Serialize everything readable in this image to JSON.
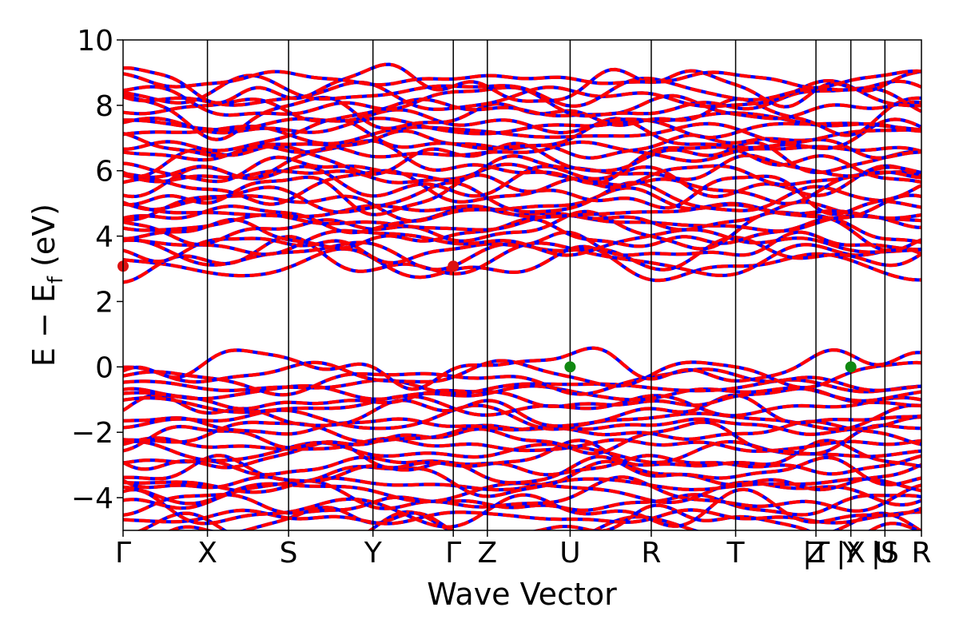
{
  "chart_data": {
    "type": "line",
    "xlabel": "Wave Vector",
    "ylabel_parts": [
      "E − E",
      "f",
      " (eV)"
    ],
    "ylim": [
      -5,
      10
    ],
    "yticks": [
      10,
      8,
      6,
      4,
      2,
      0,
      -2,
      -4
    ],
    "ytick_labels": [
      "10",
      "8",
      "6",
      "4",
      "2",
      "0",
      "−2",
      "−4"
    ],
    "xlim": [
      0,
      9.84
    ],
    "kpoints": [
      {
        "label": "Γ",
        "x": 0.0
      },
      {
        "label": "X",
        "x": 1.04
      },
      {
        "label": "S",
        "x": 2.04
      },
      {
        "label": "Y",
        "x": 3.08
      },
      {
        "label": "Γ",
        "x": 4.07
      },
      {
        "label": "Z",
        "x": 4.49
      },
      {
        "label": "U",
        "x": 5.51
      },
      {
        "label": "R",
        "x": 6.51
      },
      {
        "label": "T",
        "x": 7.55
      },
      {
        "label": "Z",
        "x": 8.54
      },
      {
        "label": "|T",
        "x": 8.54
      },
      {
        "label": "Y",
        "x": 8.97
      },
      {
        "label": "|X",
        "x": 8.97
      },
      {
        "label": "U",
        "x": 9.39
      },
      {
        "label": "|S",
        "x": 9.39
      },
      {
        "label": "R",
        "x": 9.84
      }
    ],
    "band_regions": {
      "conduction": {
        "min": 3.1,
        "max": 8.8,
        "count": 32
      },
      "valence": {
        "min": -5.0,
        "max": 0.0,
        "count": 26
      }
    },
    "cbm_points": [
      {
        "x": 0.0,
        "y": 3.08
      },
      {
        "x": 4.07,
        "y": 3.08
      }
    ],
    "vbm_points": [
      {
        "x": 5.51,
        "y": 0.0
      },
      {
        "x": 8.97,
        "y": 0.0
      }
    ],
    "colors": {
      "spin_up": "#ff0000",
      "spin_down": "#0000ff",
      "cbm": "#dd1111",
      "vbm": "#118811",
      "frame": "#000000"
    }
  }
}
